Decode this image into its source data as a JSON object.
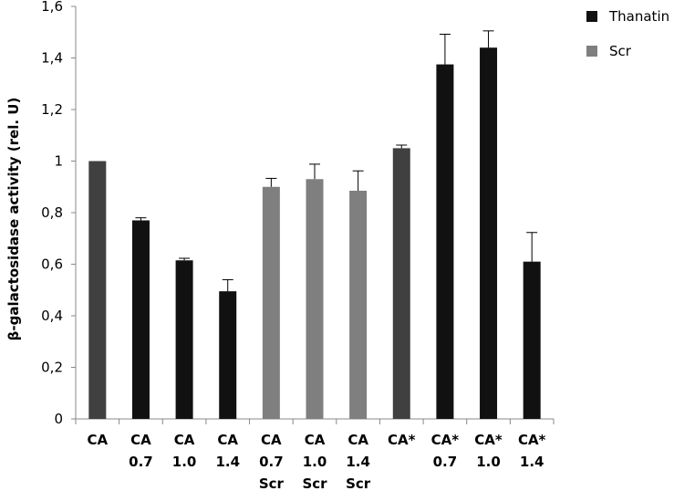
{
  "chart_data": {
    "type": "bar",
    "ylabel": "β-galactosidase activity (rel. U)",
    "ylim": [
      0,
      1.6
    ],
    "yticks": [
      "0",
      "0,2",
      "0,4",
      "0,6",
      "0,8",
      "1",
      "1,2",
      "1,4",
      "1,6"
    ],
    "grid": false,
    "legend_position": "top-right",
    "legend": [
      {
        "label": "Thanatin",
        "color": "#111111"
      },
      {
        "label": "Scr",
        "color": "#7f7f7f"
      }
    ],
    "categories": [
      [
        "CA"
      ],
      [
        "CA",
        "0.7"
      ],
      [
        "CA",
        "1.0"
      ],
      [
        "CA",
        "1.4"
      ],
      [
        "CA",
        "0.7",
        "Scr"
      ],
      [
        "CA",
        "1.0",
        "Scr"
      ],
      [
        "CA",
        "1.4",
        "Scr"
      ],
      [
        "CA*"
      ],
      [
        "CA*",
        "0.7"
      ],
      [
        "CA*",
        "1.0"
      ],
      [
        "CA*",
        "1.4"
      ]
    ],
    "values": [
      1.0,
      0.77,
      0.615,
      0.495,
      0.9,
      0.93,
      0.885,
      1.05,
      1.375,
      1.44,
      0.61
    ],
    "errors": [
      0,
      0.01,
      0.008,
      0.045,
      0.033,
      0.058,
      0.077,
      0.012,
      0.117,
      0.065,
      0.113
    ],
    "colors": [
      "#404040",
      "#111111",
      "#111111",
      "#111111",
      "#7f7f7f",
      "#7f7f7f",
      "#7f7f7f",
      "#404040",
      "#111111",
      "#111111",
      "#111111"
    ]
  }
}
